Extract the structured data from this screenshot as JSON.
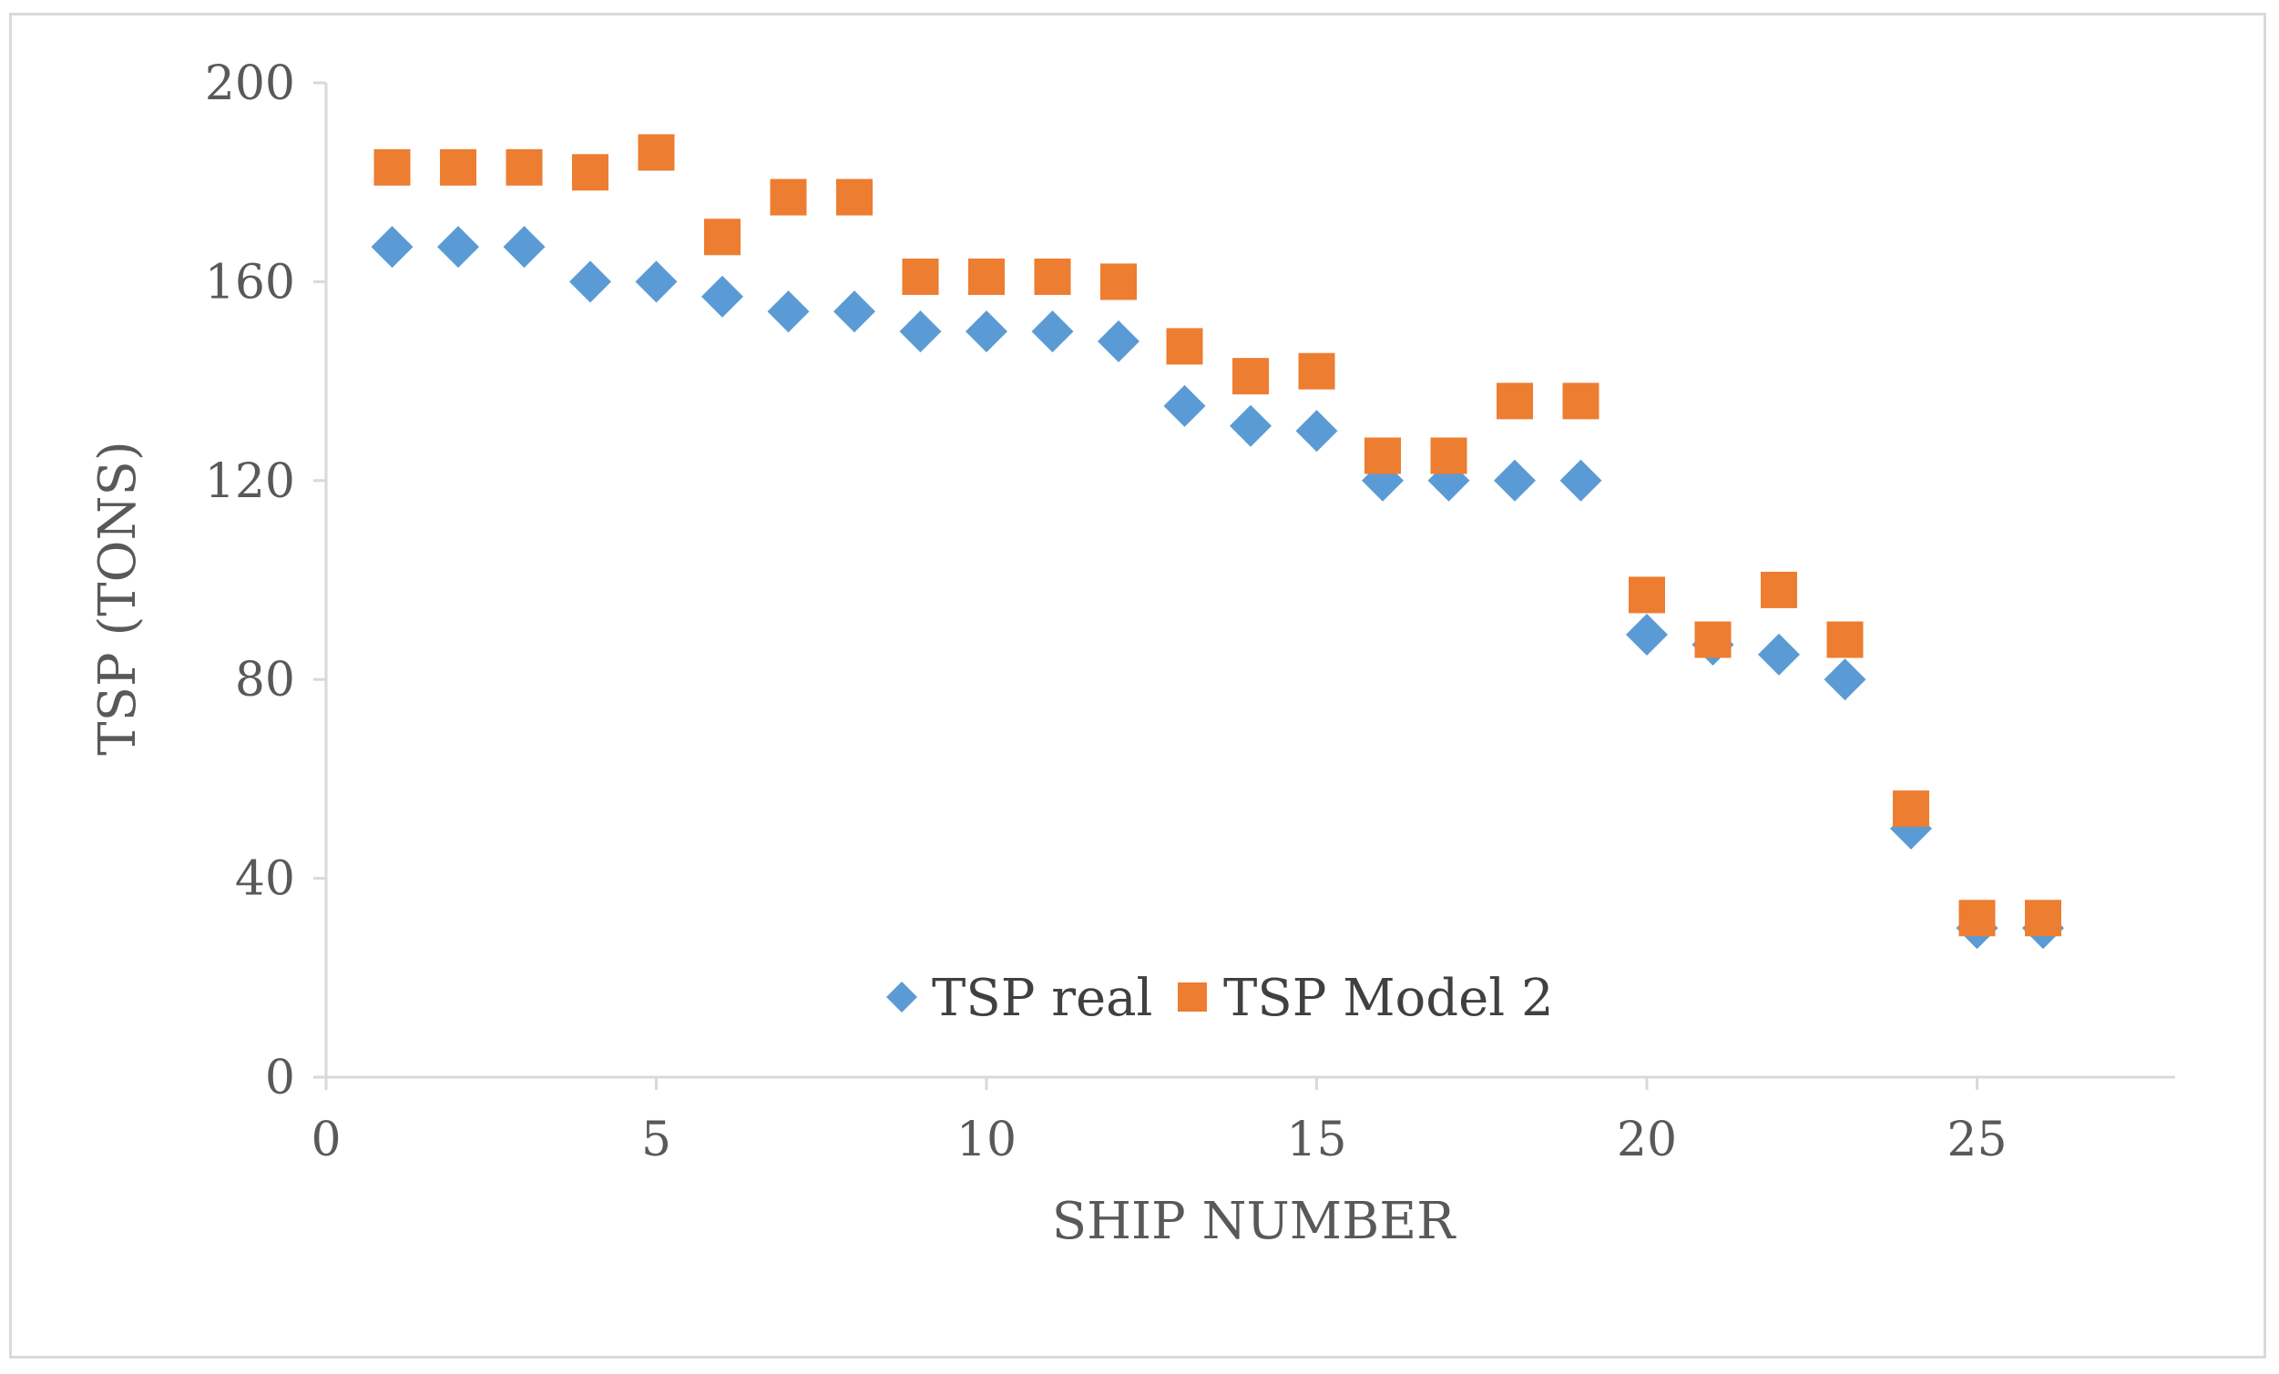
{
  "chart_data": {
    "type": "scatter",
    "title": "",
    "xlabel": "SHIP NUMBER",
    "ylabel": "TSP (TONS)",
    "xlim": [
      0,
      28
    ],
    "ylim": [
      0,
      200
    ],
    "xticks": [
      0,
      5,
      10,
      15,
      20,
      25
    ],
    "yticks": [
      0,
      40,
      80,
      120,
      160,
      200
    ],
    "grid": false,
    "legend_position": "bottom-center",
    "x": [
      1,
      2,
      3,
      4,
      5,
      6,
      7,
      8,
      9,
      10,
      11,
      12,
      13,
      14,
      15,
      16,
      17,
      18,
      19,
      20,
      21,
      22,
      23,
      24,
      25,
      26
    ],
    "series": [
      {
        "name": "TSP real",
        "marker": "diamond",
        "color": "#5b9bd5",
        "values": [
          167,
          167,
          167,
          160,
          160,
          157,
          154,
          154,
          150,
          150,
          150,
          148,
          135,
          131,
          130,
          120,
          120,
          120,
          120,
          89,
          87,
          85,
          80,
          50,
          30,
          30
        ]
      },
      {
        "name": "TSP Model 2",
        "marker": "square",
        "color": "#ed7d31",
        "values": [
          183,
          183,
          183,
          182,
          186,
          169,
          177,
          177,
          161,
          161,
          161,
          160,
          147,
          141,
          142,
          125,
          125,
          136,
          136,
          97,
          88,
          98,
          88,
          54,
          32,
          32
        ]
      }
    ]
  }
}
